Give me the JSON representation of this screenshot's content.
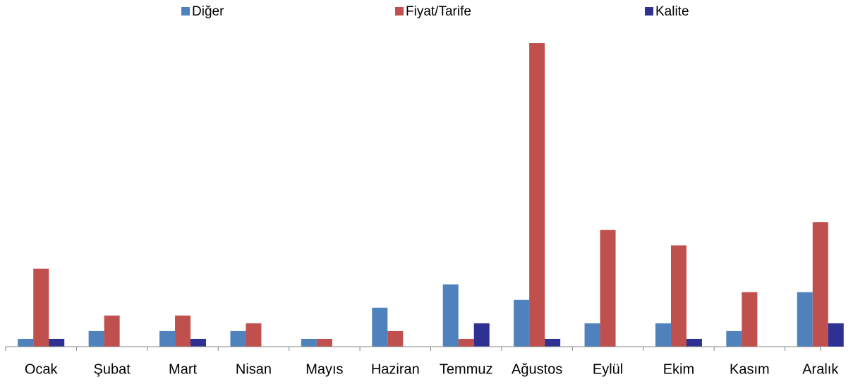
{
  "chart_data": {
    "type": "bar",
    "categories": [
      "Ocak",
      "Şubat",
      "Mart",
      "Nisan",
      "Mayıs",
      "Haziran",
      "Temmuz",
      "Ağustos",
      "Eylül",
      "Ekim",
      "Kasım",
      "Aralık"
    ],
    "series": [
      {
        "name": "Diğer",
        "color": "#4f81bd",
        "values": [
          1,
          2,
          2,
          2,
          1,
          5,
          8,
          6,
          3,
          3,
          2,
          7
        ]
      },
      {
        "name": "Fiyat/Tarife",
        "color": "#c0504d",
        "values": [
          10,
          4,
          4,
          3,
          1,
          2,
          1,
          39,
          15,
          13,
          7,
          16
        ]
      },
      {
        "name": "Kalite",
        "color": "#2e3192",
        "values": [
          1,
          0,
          1,
          0,
          0,
          0,
          3,
          1,
          0,
          1,
          0,
          3
        ]
      }
    ]
  }
}
